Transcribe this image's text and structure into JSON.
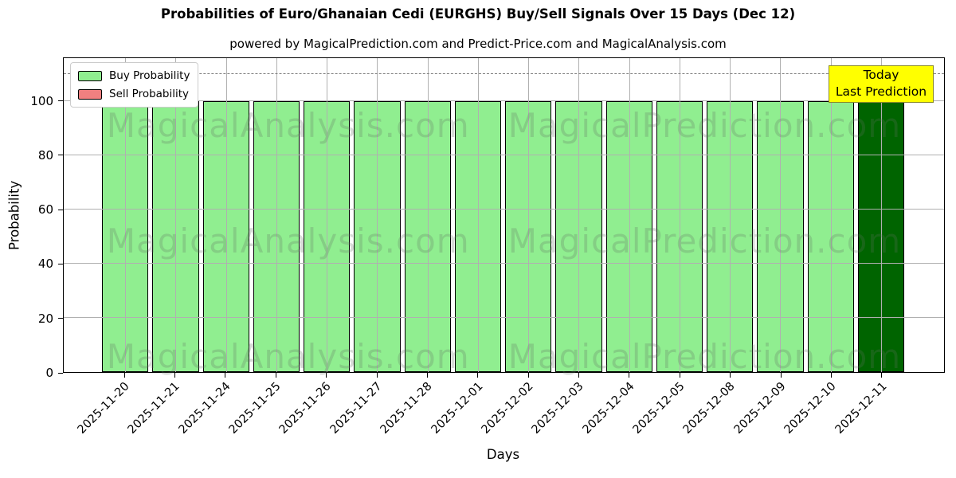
{
  "title": "Probabilities of Euro/Ghanaian Cedi (EURGHS) Buy/Sell Signals Over 15 Days (Dec 12)",
  "subtitle": "powered by MagicalPrediction.com and Predict-Price.com and MagicalAnalysis.com",
  "watermark": {
    "left_text": "MagicalAnalysis.com",
    "right_text": "MagicalPrediction.com"
  },
  "legend": {
    "items": [
      {
        "label": "Buy Probability",
        "color": "#90EE90"
      },
      {
        "label": "Sell Probability",
        "color": "#F08080"
      }
    ]
  },
  "annotation_box": {
    "line1": "Today",
    "line2": "Last Prediction",
    "fill": "#FFFF00",
    "border": "#8a8a2a"
  },
  "axes": {
    "ylabel": "Probability",
    "xlabel": "Days",
    "yticks": [
      0,
      20,
      40,
      60,
      80,
      100
    ],
    "ylim": [
      0,
      116
    ],
    "dashed_line_y": 110,
    "grid_color": "#b0b0b0"
  },
  "chart_data": {
    "type": "bar",
    "title": "Probabilities of Euro/Ghanaian Cedi (EURGHS) Buy/Sell Signals Over 15 Days (Dec 12)",
    "xlabel": "Days",
    "ylabel": "Probability",
    "ylim": [
      0,
      116
    ],
    "grid": true,
    "legend_position": "upper left",
    "categories": [
      "2025-11-20",
      "2025-11-21",
      "2025-11-24",
      "2025-11-25",
      "2025-11-26",
      "2025-11-27",
      "2025-11-28",
      "2025-12-01",
      "2025-12-02",
      "2025-12-03",
      "2025-12-04",
      "2025-12-05",
      "2025-12-08",
      "2025-12-09",
      "2025-12-10",
      "2025-12-11"
    ],
    "series": [
      {
        "name": "Buy Probability",
        "color": "#90EE90",
        "values": [
          100,
          100,
          100,
          100,
          100,
          100,
          100,
          100,
          100,
          100,
          100,
          100,
          100,
          100,
          100,
          100
        ]
      },
      {
        "name": "Sell Probability",
        "color": "#F08080",
        "values": [
          0,
          0,
          0,
          0,
          0,
          0,
          0,
          0,
          0,
          0,
          0,
          0,
          0,
          0,
          0,
          0
        ]
      }
    ],
    "highlight": {
      "index": 15,
      "color": "#006400",
      "label": "Today / Last Prediction"
    }
  }
}
